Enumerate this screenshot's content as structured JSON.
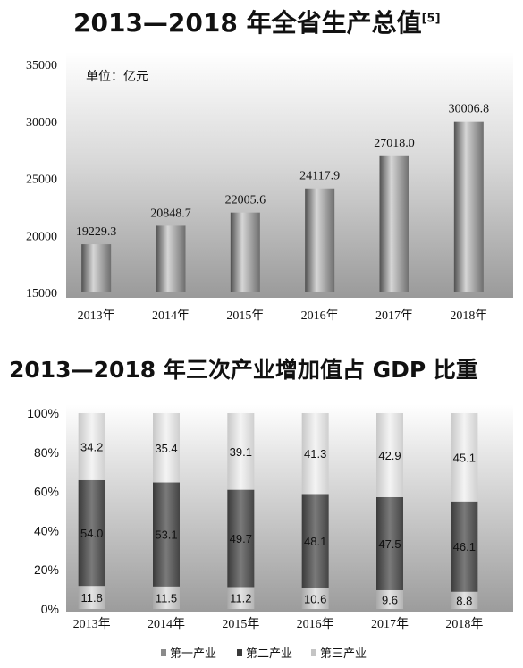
{
  "chart_data": [
    {
      "type": "bar",
      "title": "2013—2018 年全省生产总值",
      "title_superscript": "[5]",
      "unit_label": "单位：亿元",
      "categories": [
        "2013年",
        "2014年",
        "2015年",
        "2016年",
        "2017年",
        "2018年"
      ],
      "values": [
        19229.3,
        20848.7,
        22005.6,
        24117.9,
        27018.0,
        30006.8
      ],
      "value_labels": [
        "19229.3",
        "20848.7",
        "22005.6",
        "24117.9",
        "27018.0",
        "30006.8"
      ],
      "ylim": [
        15000,
        35000
      ],
      "yticks": [
        "15000",
        "20000",
        "25000",
        "30000",
        "35000"
      ],
      "grid": false
    },
    {
      "type": "bar",
      "stacked": true,
      "title": "2013—2018 年三次产业增加值占 GDP 比重",
      "categories": [
        "2013年",
        "2014年",
        "2015年",
        "2016年",
        "2017年",
        "2018年"
      ],
      "series": [
        {
          "name": "第一产业",
          "values": [
            11.8,
            11.5,
            11.2,
            10.6,
            9.6,
            8.8
          ],
          "labels": [
            "11.8",
            "11.5",
            "11.2",
            "10.6",
            "9.6",
            "8.8"
          ],
          "color": "#d4d4d4"
        },
        {
          "name": "第二产业",
          "values": [
            54.0,
            53.1,
            49.7,
            48.1,
            47.5,
            46.1
          ],
          "labels": [
            "54.0",
            "53.1",
            "49.7",
            "48.1",
            "47.5",
            "46.1"
          ],
          "color": "#5a5a5a"
        },
        {
          "name": "第三产业",
          "values": [
            34.2,
            35.4,
            39.1,
            41.3,
            42.9,
            45.1
          ],
          "labels": [
            "34.2",
            "35.4",
            "39.1",
            "41.3",
            "42.9",
            "45.1"
          ],
          "color": "#e6e6e6"
        }
      ],
      "ylim": [
        0,
        100
      ],
      "yticks": [
        "0%",
        "20%",
        "40%",
        "60%",
        "80%",
        "100%"
      ],
      "legend_position": "bottom",
      "grid": false
    }
  ]
}
